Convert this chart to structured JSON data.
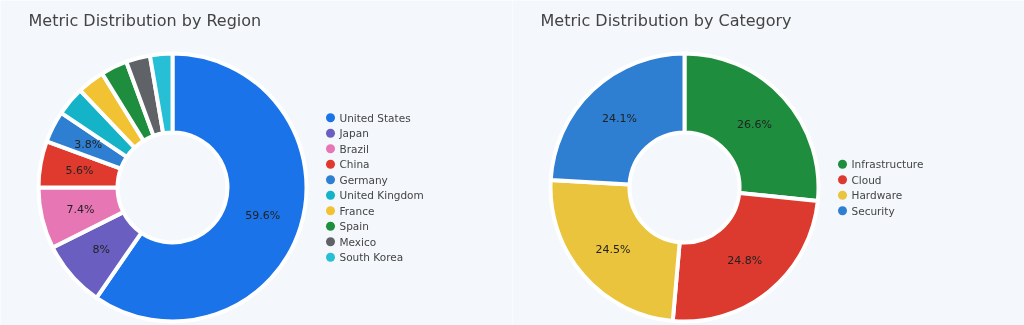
{
  "chart_data": [
    {
      "type": "donut",
      "title": "Metric Distribution by Region",
      "categories": [
        "United States",
        "Japan",
        "Brazil",
        "China",
        "Germany",
        "United Kingdom",
        "France",
        "Spain",
        "Mexico",
        "South Korea"
      ],
      "values": [
        59.6,
        8,
        7.4,
        5.6,
        3.8,
        3.5,
        3.3,
        3.2,
        2.9,
        2.7
      ],
      "colors": [
        "#1a73e8",
        "#6a5fc1",
        "#e776b4",
        "#e03a2f",
        "#2e7fd1",
        "#14b3c8",
        "#f1c232",
        "#1e8e3e",
        "#5f6368",
        "#26bfd6"
      ],
      "value_labels": [
        "59.6%",
        "8%",
        "7.4%",
        "5.6%",
        "3.8%",
        null,
        null,
        null,
        null,
        null
      ],
      "legend": "right"
    },
    {
      "type": "donut",
      "title": "Metric Distribution by Category",
      "categories": [
        "Infrastructure",
        "Cloud",
        "Hardware",
        "Security"
      ],
      "values": [
        26.6,
        24.8,
        24.5,
        24.1
      ],
      "colors": [
        "#1e8e3e",
        "#dc3a2f",
        "#eac43c",
        "#2e7fd1"
      ],
      "value_labels": [
        "26.6%",
        "24.8%",
        "24.5%",
        "24.1%"
      ],
      "legend": "right"
    }
  ]
}
